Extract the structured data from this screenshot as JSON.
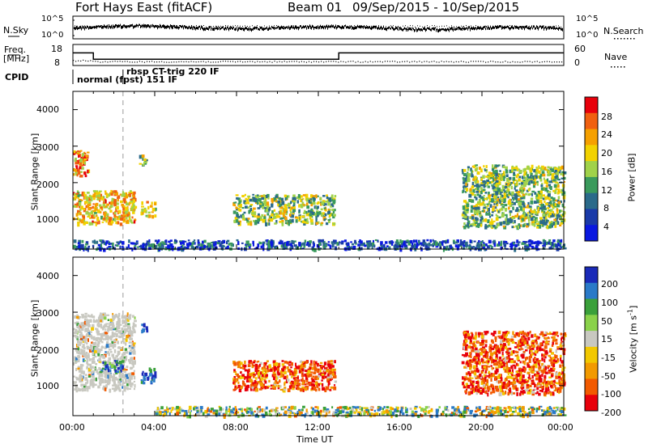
{
  "header": {
    "title": "Fort Hays East (fitACF)",
    "beam": "Beam 01",
    "dates": "09/Sep/2015 - 10/Sep/2015"
  },
  "strip": {
    "nsky_label": "N.Sky",
    "nsky_ticks": [
      "10^5",
      "10^0"
    ],
    "nsearch_label": "N.Search",
    "nsearch_ticks": [
      "10^5",
      "10^0"
    ],
    "freq_label": "Freq.",
    "freq_unit": "[MHz]",
    "freq_ticks": [
      "18",
      "8"
    ],
    "nave_label": "Nave",
    "nave_ticks": [
      "60",
      "0"
    ],
    "cpid_label": "CPID",
    "cpid_entries": [
      "normal (fpst) 151 IF",
      "rbsp CT-trig 220 IF"
    ]
  },
  "power_scale": {
    "label": "Power [dB]",
    "ticks": [
      "28",
      "24",
      "20",
      "16",
      "12",
      "8",
      "4"
    ],
    "colors": [
      "#e8000b",
      "#f06010",
      "#f5a000",
      "#f2d200",
      "#a0d24a",
      "#3a9a5c",
      "#2a6a8a",
      "#1a3aa8",
      "#0a18e0"
    ]
  },
  "velocity_scale": {
    "label": "Velocity [m s",
    "label_sup": "-1",
    "label_end": "]",
    "ticks": [
      "200",
      "100",
      "50",
      "15",
      "-15",
      "-50",
      "-100",
      "-200"
    ],
    "colors": [
      "#1a2ab8",
      "#2a7ac8",
      "#3aa03a",
      "#8ad24a",
      "#c8c8c0",
      "#f2c800",
      "#f29a00",
      "#f25a00",
      "#e8000b"
    ]
  },
  "axes": {
    "ylabel": "Slant Range [km]",
    "yticks": [
      "4000",
      "3000",
      "2000",
      "1000"
    ],
    "xticks": [
      "00:00",
      "04:00",
      "08:00",
      "12:00",
      "16:00",
      "20:00",
      "00:00"
    ],
    "xlabel": "Time UT"
  },
  "chart_data": [
    {
      "type": "heatmap",
      "title": "Fort Hays East (fitACF)",
      "subtitle": "Beam 01 09/Sep/2015 - 10/Sep/2015",
      "xlabel": "Time UT",
      "ylabel": "Slant Range [km]",
      "colorbar": "Power [dB]",
      "x_range_hours": [
        0,
        24
      ],
      "y_range_km": [
        180,
        4500
      ],
      "value_range_db": [
        0,
        30
      ],
      "regions": [
        {
          "t0": 0.0,
          "t1": 0.7,
          "r0": 2200,
          "r1": 2900,
          "power": 22
        },
        {
          "t0": 0.0,
          "t1": 3.0,
          "r0": 900,
          "r1": 1800,
          "power": 20
        },
        {
          "t0": 3.2,
          "t1": 3.6,
          "r0": 2500,
          "r1": 2800,
          "power": 14
        },
        {
          "t0": 3.3,
          "t1": 4.0,
          "r0": 1100,
          "r1": 1500,
          "power": 18
        },
        {
          "t0": 7.8,
          "t1": 12.8,
          "r0": 900,
          "r1": 1700,
          "power": 14
        },
        {
          "t0": 19.0,
          "t1": 24.0,
          "r0": 800,
          "r1": 2500,
          "power": 14
        },
        {
          "t0": 0.0,
          "t1": 24.0,
          "r0": 200,
          "r1": 450,
          "power": 6
        }
      ]
    },
    {
      "type": "heatmap",
      "xlabel": "Time UT",
      "ylabel": "Slant Range [km]",
      "colorbar": "Velocity [m s-1]",
      "x_range_hours": [
        0,
        24
      ],
      "y_range_km": [
        180,
        4500
      ],
      "value_range_ms": [
        -250,
        250
      ],
      "regions": [
        {
          "t0": 0.0,
          "t1": 3.0,
          "r0": 900,
          "r1": 3000,
          "velocity": 0
        },
        {
          "t0": 1.4,
          "t1": 2.4,
          "r0": 1400,
          "r1": 1700,
          "velocity": 150
        },
        {
          "t0": 3.3,
          "t1": 3.6,
          "r0": 2500,
          "r1": 2800,
          "velocity": 220
        },
        {
          "t0": 3.3,
          "t1": 4.0,
          "r0": 1100,
          "r1": 1500,
          "velocity": 220
        },
        {
          "t0": 7.8,
          "t1": 12.8,
          "r0": 900,
          "r1": 1700,
          "velocity": -150
        },
        {
          "t0": 19.0,
          "t1": 24.0,
          "r0": 800,
          "r1": 2500,
          "velocity": -150
        },
        {
          "t0": 4.0,
          "t1": 24.0,
          "r0": 200,
          "r1": 450,
          "velocity": 30
        }
      ]
    },
    {
      "type": "line",
      "xlabel": "Time UT",
      "series": [
        {
          "name": "Freq.",
          "unit": "MHz",
          "x": [
            0,
            1,
            1,
            13,
            13,
            24
          ],
          "values": [
            14,
            14,
            11,
            11,
            14,
            14
          ]
        },
        {
          "name": "Nave",
          "x": [
            0,
            1,
            1,
            24
          ],
          "values": [
            15,
            15,
            12,
            12
          ]
        }
      ],
      "cpid": [
        {
          "t_start": 0,
          "t_end": 2.45,
          "program": "normal (fpst) 151 IF"
        },
        {
          "t_start": 2.45,
          "t_end": 24,
          "program": "rbsp CT-trig 220 IF"
        }
      ]
    }
  ]
}
